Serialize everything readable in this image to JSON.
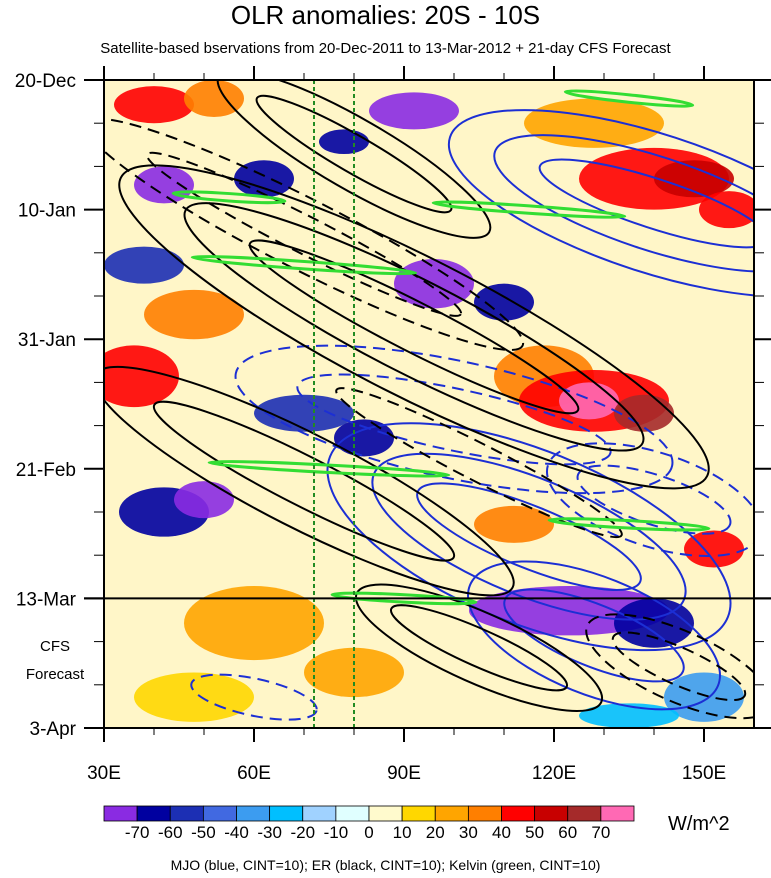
{
  "chart_data": {
    "type": "heatmap",
    "title": "OLR anomalies: 20S - 10S",
    "subtitle": "Satellite-based bservations from 20-Dec-2011 to 13-Mar-2012 + 21-day CFS Forecast",
    "x_ticks": [
      {
        "v": 30,
        "label": "30E"
      },
      {
        "v": 60,
        "label": "60E"
      },
      {
        "v": 90,
        "label": "90E"
      },
      {
        "v": 120,
        "label": "120E"
      },
      {
        "v": 150,
        "label": "150E"
      }
    ],
    "xlim": [
      30,
      160
    ],
    "y_ticks": [
      {
        "v": 0,
        "label": "20-Dec"
      },
      {
        "v": 21,
        "label": "10-Jan"
      },
      {
        "v": 42,
        "label": "31-Jan"
      },
      {
        "v": 63,
        "label": "21-Feb"
      },
      {
        "v": 84,
        "label": "13-Mar"
      },
      {
        "v": 105,
        "label": "3-Apr"
      }
    ],
    "ylim": [
      0,
      105
    ],
    "forecast_start_day": 84,
    "forecast_label": [
      "CFS",
      "Forecast"
    ],
    "reference_longitudes": [
      72,
      80
    ],
    "colorbar": {
      "units": "W/m^2",
      "labels": [
        "-70",
        "-60",
        "-50",
        "-40",
        "-30",
        "-20",
        "-10",
        "0",
        "10",
        "20",
        "30",
        "40",
        "50",
        "60",
        "70"
      ],
      "colors": [
        "#8a2be2",
        "#0000a0",
        "#1c2fb4",
        "#4169e1",
        "#3c9cf0",
        "#00bfff",
        "#a0d2ff",
        "#e0ffff",
        "#fffacd",
        "#ffd700",
        "#ffa500",
        "#ff7f00",
        "#ff0000",
        "#c80000",
        "#a52a2a",
        "#ff69b4"
      ]
    },
    "anomaly_patches": [
      {
        "lon": 40,
        "day": 4,
        "rlon": 8,
        "rday": 3,
        "bin": 12
      },
      {
        "lon": 52,
        "day": 3,
        "rlon": 6,
        "rday": 3,
        "bin": 11
      },
      {
        "lon": 92,
        "day": 5,
        "rlon": 9,
        "rday": 3,
        "bin": 0
      },
      {
        "lon": 78,
        "day": 10,
        "rlon": 5,
        "rday": 2,
        "bin": 1
      },
      {
        "lon": 128,
        "day": 7,
        "rlon": 14,
        "rday": 4,
        "bin": 10
      },
      {
        "lon": 140,
        "day": 16,
        "rlon": 15,
        "rday": 5,
        "bin": 12
      },
      {
        "lon": 148,
        "day": 16,
        "rlon": 8,
        "rday": 3,
        "bin": 13
      },
      {
        "lon": 42,
        "day": 17,
        "rlon": 6,
        "rday": 3,
        "bin": 0
      },
      {
        "lon": 62,
        "day": 16,
        "rlon": 6,
        "rday": 3,
        "bin": 1
      },
      {
        "lon": 155,
        "day": 21,
        "rlon": 6,
        "rday": 3,
        "bin": 12
      },
      {
        "lon": 96,
        "day": 33,
        "rlon": 8,
        "rday": 4,
        "bin": 0
      },
      {
        "lon": 110,
        "day": 36,
        "rlon": 6,
        "rday": 3,
        "bin": 1
      },
      {
        "lon": 38,
        "day": 30,
        "rlon": 8,
        "rday": 3,
        "bin": 2
      },
      {
        "lon": 36,
        "day": 48,
        "rlon": 9,
        "rday": 5,
        "bin": 12
      },
      {
        "lon": 48,
        "day": 38,
        "rlon": 10,
        "rday": 4,
        "bin": 11
      },
      {
        "lon": 118,
        "day": 48,
        "rlon": 10,
        "rday": 5,
        "bin": 11
      },
      {
        "lon": 128,
        "day": 52,
        "rlon": 15,
        "rday": 5,
        "bin": 12
      },
      {
        "lon": 127,
        "day": 52,
        "rlon": 6,
        "rday": 3,
        "bin": 15
      },
      {
        "lon": 138,
        "day": 54,
        "rlon": 6,
        "rday": 3,
        "bin": 14
      },
      {
        "lon": 70,
        "day": 54,
        "rlon": 10,
        "rday": 3,
        "bin": 2
      },
      {
        "lon": 82,
        "day": 58,
        "rlon": 6,
        "rday": 3,
        "bin": 1
      },
      {
        "lon": 42,
        "day": 70,
        "rlon": 9,
        "rday": 4,
        "bin": 1
      },
      {
        "lon": 50,
        "day": 68,
        "rlon": 6,
        "rday": 3,
        "bin": 0
      },
      {
        "lon": 112,
        "day": 72,
        "rlon": 8,
        "rday": 3,
        "bin": 11
      },
      {
        "lon": 152,
        "day": 76,
        "rlon": 6,
        "rday": 3,
        "bin": 12
      },
      {
        "lon": 123,
        "day": 86,
        "rlon": 20,
        "rday": 4,
        "bin": 0
      },
      {
        "lon": 140,
        "day": 88,
        "rlon": 8,
        "rday": 4,
        "bin": 1
      },
      {
        "lon": 60,
        "day": 88,
        "rlon": 14,
        "rday": 6,
        "bin": 10
      },
      {
        "lon": 48,
        "day": 100,
        "rlon": 12,
        "rday": 4,
        "bin": 9
      },
      {
        "lon": 80,
        "day": 96,
        "rlon": 10,
        "rday": 4,
        "bin": 10
      },
      {
        "lon": 150,
        "day": 100,
        "rlon": 8,
        "rday": 4,
        "bin": 4
      },
      {
        "lon": 135,
        "day": 103,
        "rlon": 10,
        "rday": 2,
        "bin": 5
      }
    ],
    "contour_sets": [
      {
        "name": "MJO",
        "cint": 10,
        "color": "#1c2fd4",
        "rings": [
          {
            "cx": 140,
            "cy": 20,
            "rx": 30,
            "ry": 4,
            "rot": 18,
            "n": 3,
            "neg": false
          },
          {
            "cx": 115,
            "cy": 74,
            "rx": 30,
            "ry": 5,
            "rot": 22,
            "n": 3,
            "neg": false
          },
          {
            "cx": 128,
            "cy": 90,
            "rx": 24,
            "ry": 5,
            "rot": 22,
            "n": 2,
            "neg": false
          },
          {
            "cx": 100,
            "cy": 55,
            "rx": 40,
            "ry": 5,
            "rot": 12,
            "n": 2,
            "neg": true
          },
          {
            "cx": 140,
            "cy": 68,
            "rx": 20,
            "ry": 4,
            "rot": 18,
            "n": 2,
            "neg": true
          },
          {
            "cx": 60,
            "cy": 100,
            "rx": 16,
            "ry": 3,
            "rot": 12,
            "n": 1,
            "neg": true
          }
        ]
      },
      {
        "name": "ER",
        "cint": 10,
        "color": "#000000",
        "rings": [
          {
            "cx": 80,
            "cy": 12,
            "rx": 28,
            "ry": 3,
            "rot": 30,
            "n": 2,
            "neg": false
          },
          {
            "cx": 92,
            "cy": 40,
            "rx": 46,
            "ry": 4,
            "rot": 27,
            "n": 3,
            "neg": false
          },
          {
            "cx": 70,
            "cy": 65,
            "rx": 42,
            "ry": 4,
            "rot": 27,
            "n": 2,
            "neg": false
          },
          {
            "cx": 105,
            "cy": 92,
            "rx": 24,
            "ry": 3,
            "rot": 24,
            "n": 2,
            "neg": false
          },
          {
            "cx": 70,
            "cy": 25,
            "rx": 44,
            "ry": 3,
            "rot": 27,
            "n": 2,
            "neg": true
          },
          {
            "cx": 105,
            "cy": 62,
            "rx": 40,
            "ry": 3,
            "rot": 27,
            "n": 1,
            "neg": true
          },
          {
            "cx": 145,
            "cy": 95,
            "rx": 18,
            "ry": 3,
            "rot": 24,
            "n": 2,
            "neg": true
          }
        ]
      },
      {
        "name": "Kelvin",
        "cint": 10,
        "color": "#33dd33",
        "rings": [
          {
            "cx": 135,
            "cy": 3,
            "rx": 16,
            "ry": 0.6,
            "rot": 6,
            "n": 1,
            "neg": false
          },
          {
            "cx": 55,
            "cy": 19,
            "rx": 14,
            "ry": 0.6,
            "rot": 4,
            "n": 1,
            "neg": false
          },
          {
            "cx": 115,
            "cy": 21,
            "rx": 24,
            "ry": 0.6,
            "rot": 4,
            "n": 1,
            "neg": false
          },
          {
            "cx": 70,
            "cy": 30,
            "rx": 28,
            "ry": 0.6,
            "rot": 4,
            "n": 1,
            "neg": false
          },
          {
            "cx": 75,
            "cy": 63,
            "rx": 30,
            "ry": 0.6,
            "rot": 3,
            "n": 1,
            "neg": false
          },
          {
            "cx": 135,
            "cy": 72,
            "rx": 20,
            "ry": 0.6,
            "rot": 3,
            "n": 1,
            "neg": false
          },
          {
            "cx": 90,
            "cy": 84,
            "rx": 18,
            "ry": 0.6,
            "rot": 3,
            "n": 1,
            "neg": false
          }
        ]
      }
    ]
  },
  "footer": "MJO (blue, CINT=10); ER (black, CINT=10); Kelvin (green, CINT=10)"
}
